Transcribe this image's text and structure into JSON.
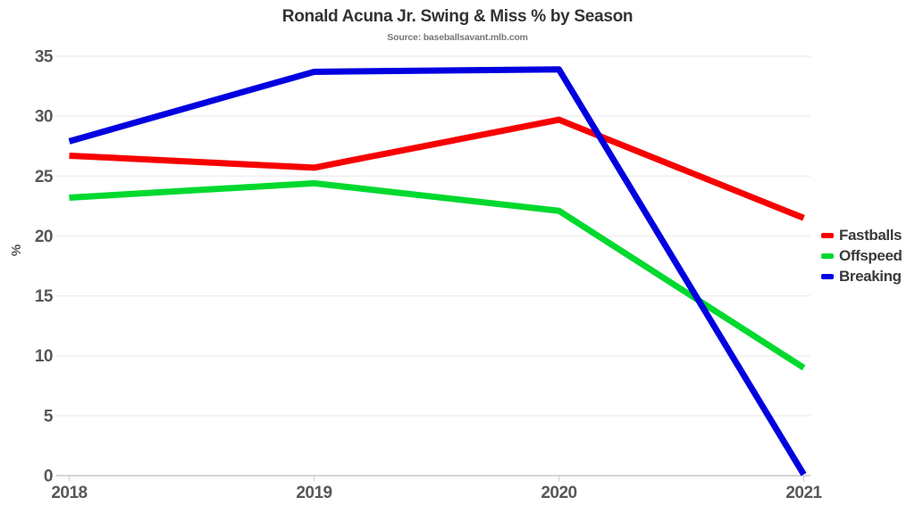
{
  "chart_data": {
    "type": "line",
    "title": "Ronald Acuna Jr. Swing & Miss % by Season",
    "subtitle": "Source: baseballsavant.mlb.com",
    "xlabel": "",
    "ylabel": "%",
    "categories": [
      "2018",
      "2019",
      "2020",
      "2021"
    ],
    "series": [
      {
        "name": "Fastballs",
        "color": "#f80000",
        "values": [
          26.7,
          25.7,
          29.7,
          21.5
        ]
      },
      {
        "name": "Offspeed",
        "color": "#00d92e",
        "values": [
          23.2,
          24.4,
          22.1,
          9.0
        ]
      },
      {
        "name": "Breaking",
        "color": "#0000e0",
        "values": [
          27.9,
          33.7,
          33.9,
          0.1
        ]
      }
    ],
    "ylim": [
      0,
      35
    ],
    "yticks": [
      0,
      5,
      10,
      15,
      20,
      25,
      30,
      35
    ],
    "grid": true,
    "legend_position": "right-middle"
  }
}
